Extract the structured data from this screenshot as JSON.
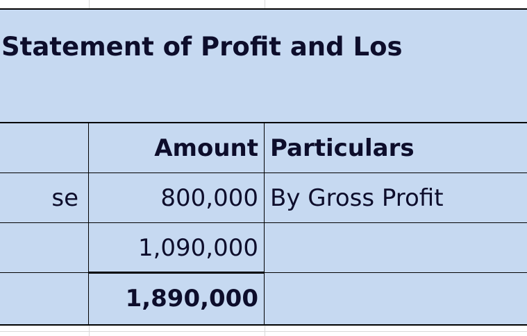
{
  "title": "Statement of Profit and Los",
  "table": {
    "headers": {
      "col1": "",
      "amount": "Amount",
      "particulars": "Particulars"
    },
    "rows": [
      {
        "col1": "se",
        "amount": "800,000",
        "particulars": "By Gross Profit",
        "bold": false
      },
      {
        "col1": "",
        "amount": "1,090,000",
        "particulars": "",
        "bold": false
      },
      {
        "col1": "",
        "amount": "1,890,000",
        "particulars": "",
        "bold": true
      }
    ]
  },
  "colors": {
    "cell_fill": "#c6d9f1",
    "text": "#0d0d2b",
    "border": "#000000"
  }
}
